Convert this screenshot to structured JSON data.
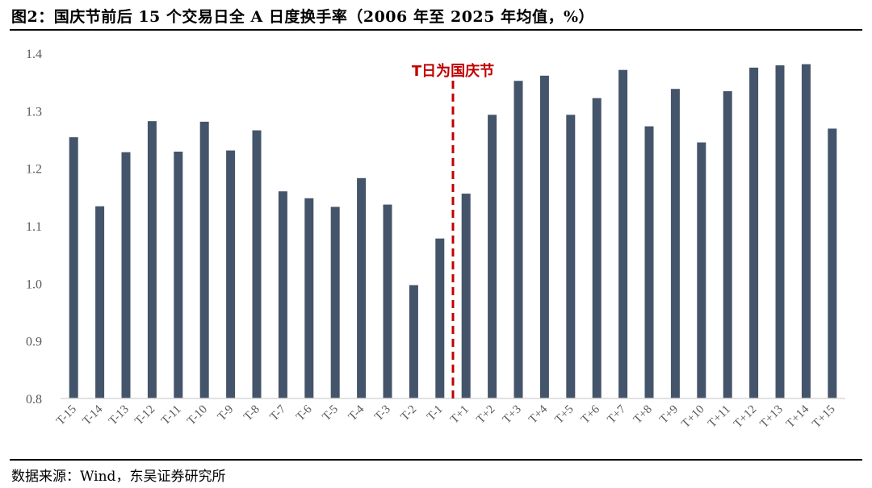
{
  "header": {
    "title": "图2：国庆节前后 15 个交易日全 A 日度换手率（2006 年至 2025 年均值，%）"
  },
  "footer": {
    "source": "数据来源：Wind，东吴证券研究所"
  },
  "colors": {
    "bar": "#44546a",
    "axis": "#d9d9d9",
    "annotation": "#c00000"
  },
  "chart_data": {
    "type": "bar",
    "title": "",
    "xlabel": "",
    "ylabel": "",
    "ylim": [
      0.8,
      1.4
    ],
    "yticks": [
      "0.8",
      "0.9",
      "1.0",
      "1.1",
      "1.2",
      "1.3",
      "1.4"
    ],
    "grid": false,
    "categories": [
      "T-15",
      "T-14",
      "T-13",
      "T-12",
      "T-11",
      "T-10",
      "T-9",
      "T-8",
      "T-7",
      "T-6",
      "T-5",
      "T-4",
      "T-3",
      "T-2",
      "T-1",
      "T+1",
      "T+2",
      "T+3",
      "T+4",
      "T+5",
      "T+6",
      "T+7",
      "T+8",
      "T+9",
      "T+10",
      "T+11",
      "T+12",
      "T+13",
      "T+14",
      "T+15"
    ],
    "values": [
      1.254,
      1.134,
      1.228,
      1.282,
      1.229,
      1.281,
      1.231,
      1.266,
      1.16,
      1.148,
      1.133,
      1.183,
      1.137,
      0.997,
      1.078,
      1.156,
      1.293,
      1.352,
      1.361,
      1.293,
      1.322,
      1.371,
      1.273,
      1.338,
      1.245,
      1.334,
      1.375,
      1.379,
      1.381,
      1.269
    ],
    "annotation": {
      "text": "T日为国庆节",
      "between": [
        "T-1",
        "T+1"
      ]
    }
  }
}
